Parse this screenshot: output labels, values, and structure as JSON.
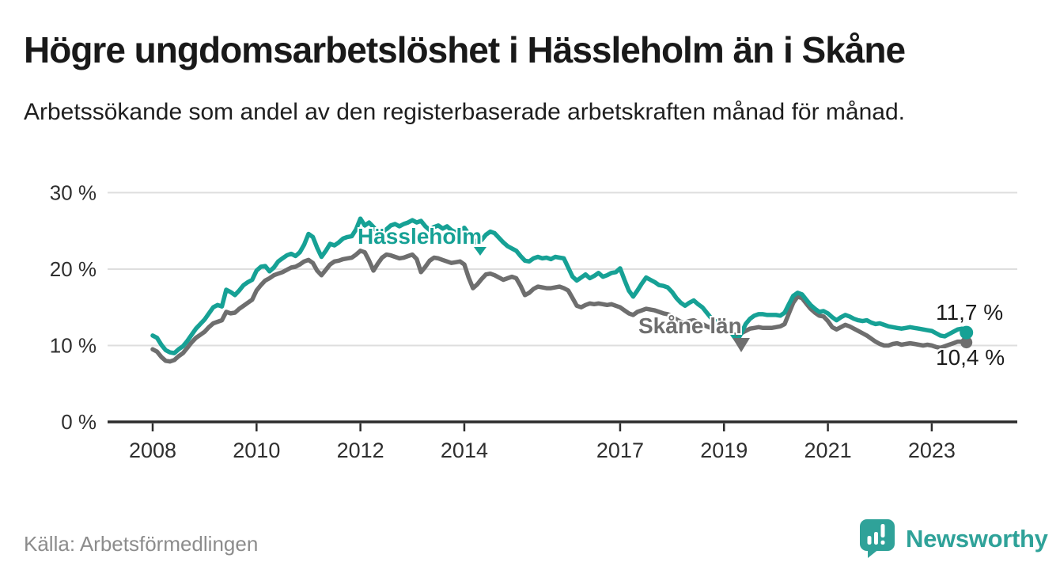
{
  "header": {
    "title": "Högre ungdomsarbetslöshet i Hässleholm än i Skåne",
    "subtitle": "Arbetssökande som andel av den registerbaserade arbetskraften månad för månad."
  },
  "footer": {
    "source": "Källa: Arbetsförmedlingen",
    "brand": "Newsworthy"
  },
  "colors": {
    "teal": "#16a195",
    "gray": "#6e6e6e",
    "grid": "#dedede",
    "axis": "#2c2c2c",
    "label_dark": "#1b1b1b",
    "muted": "#8c8c8c",
    "brand_teal": "#2fa299"
  },
  "chart_data": {
    "type": "line",
    "unit": "%",
    "frequency": "monthly",
    "x_start": "2008-01",
    "x_end": "2023-09",
    "ylim": [
      0,
      30
    ],
    "grid": true,
    "yticks": [
      {
        "value": 0,
        "label": "0 %"
      },
      {
        "value": 10,
        "label": "10 %"
      },
      {
        "value": 20,
        "label": "20 %"
      },
      {
        "value": 30,
        "label": "30 %"
      }
    ],
    "xticks": [
      "2008",
      "2010",
      "2012",
      "2014",
      "2017",
      "2019",
      "2021",
      "2023"
    ],
    "series": [
      {
        "name": "Skåne län",
        "color": "#6e6e6e",
        "end_value": 10.4,
        "end_label": "10,4 %",
        "values": [
          9.5,
          9.2,
          8.5,
          8.0,
          7.9,
          8.1,
          8.6,
          9.0,
          9.7,
          10.4,
          11.0,
          11.4,
          11.8,
          12.4,
          12.9,
          13.1,
          13.3,
          14.4,
          14.2,
          14.3,
          14.8,
          15.2,
          15.6,
          16.0,
          17.2,
          17.9,
          18.5,
          18.8,
          19.2,
          19.4,
          19.6,
          19.9,
          20.2,
          20.3,
          20.6,
          21.0,
          21.2,
          20.8,
          19.8,
          19.2,
          19.9,
          20.6,
          21.0,
          21.1,
          21.3,
          21.4,
          21.5,
          21.9,
          22.4,
          22.2,
          21.1,
          19.8,
          20.7,
          21.5,
          21.9,
          21.8,
          21.6,
          21.4,
          21.5,
          21.7,
          21.9,
          21.3,
          19.6,
          20.3,
          21.1,
          21.5,
          21.4,
          21.2,
          21.0,
          20.8,
          20.9,
          21.0,
          20.6,
          18.9,
          17.5,
          18.0,
          18.7,
          19.3,
          19.4,
          19.2,
          18.9,
          18.6,
          18.8,
          19.0,
          18.8,
          17.8,
          16.6,
          16.9,
          17.4,
          17.7,
          17.6,
          17.5,
          17.5,
          17.6,
          17.7,
          17.5,
          17.2,
          16.2,
          15.2,
          15.0,
          15.3,
          15.5,
          15.4,
          15.5,
          15.4,
          15.3,
          15.4,
          15.2,
          15.0,
          14.6,
          14.2,
          14.0,
          14.4,
          14.6,
          14.8,
          14.7,
          14.6,
          14.4,
          14.2,
          14.1,
          13.8,
          13.4,
          13.1,
          13.0,
          13.2,
          13.3,
          13.0,
          12.8,
          12.5,
          12.3,
          12.1,
          12.1,
          12.3,
          11.9,
          11.5,
          11.3,
          11.6,
          11.9,
          12.2,
          12.3,
          12.4,
          12.3,
          12.3,
          12.3,
          12.4,
          12.5,
          12.8,
          14.2,
          15.6,
          16.4,
          16.2,
          15.5,
          14.8,
          14.3,
          13.9,
          13.8,
          13.2,
          12.4,
          12.1,
          12.4,
          12.7,
          12.5,
          12.2,
          11.9,
          11.6,
          11.3,
          10.9,
          10.5,
          10.2,
          10.0,
          10.0,
          10.2,
          10.3,
          10.1,
          10.2,
          10.3,
          10.2,
          10.1,
          10.0,
          10.1,
          10.0,
          9.8,
          9.7,
          9.9,
          10.1,
          10.3,
          10.5,
          10.5,
          10.4
        ]
      },
      {
        "name": "Hässleholm",
        "color": "#16a195",
        "end_value": 11.7,
        "end_label": "11,7 %",
        "values": [
          11.3,
          11.0,
          10.1,
          9.4,
          9.1,
          9.0,
          9.5,
          9.9,
          10.6,
          11.4,
          12.2,
          12.8,
          13.4,
          14.2,
          15.0,
          15.3,
          15.1,
          17.3,
          17.0,
          16.6,
          17.2,
          17.9,
          18.3,
          18.6,
          19.8,
          20.3,
          20.4,
          19.7,
          20.2,
          21.0,
          21.4,
          21.8,
          22.0,
          21.7,
          22.2,
          23.2,
          24.6,
          24.2,
          22.8,
          21.6,
          22.4,
          23.3,
          23.1,
          23.5,
          24.0,
          24.2,
          24.3,
          25.2,
          26.6,
          25.7,
          26.1,
          25.5,
          24.8,
          24.4,
          25.2,
          25.7,
          25.9,
          25.6,
          25.9,
          26.1,
          26.4,
          26.1,
          26.3,
          25.6,
          25.1,
          25.5,
          25.7,
          25.3,
          25.6,
          25.1,
          24.8,
          25.0,
          25.4,
          24.6,
          23.9,
          23.4,
          23.8,
          24.5,
          24.9,
          24.7,
          24.1,
          23.5,
          23.0,
          22.7,
          22.4,
          21.7,
          21.1,
          21.0,
          21.4,
          21.6,
          21.4,
          21.5,
          21.3,
          21.6,
          21.5,
          21.4,
          20.2,
          19.0,
          18.5,
          18.9,
          19.3,
          18.8,
          19.1,
          19.5,
          19.0,
          19.2,
          19.5,
          19.6,
          20.1,
          18.6,
          17.2,
          16.4,
          17.2,
          18.1,
          18.9,
          18.6,
          18.3,
          17.9,
          17.8,
          17.6,
          17.0,
          16.2,
          15.6,
          15.2,
          15.6,
          15.9,
          15.4,
          15.0,
          14.3,
          13.6,
          13.2,
          13.0,
          13.2,
          12.5,
          11.4,
          10.6,
          11.6,
          12.8,
          13.5,
          13.9,
          14.1,
          14.1,
          14.0,
          14.0,
          14.0,
          13.9,
          14.3,
          15.4,
          16.5,
          16.9,
          16.7,
          16.0,
          15.3,
          14.8,
          14.4,
          14.5,
          14.2,
          13.7,
          13.3,
          13.7,
          14.0,
          13.8,
          13.5,
          13.3,
          13.2,
          13.3,
          13.0,
          12.8,
          12.9,
          12.7,
          12.5,
          12.4,
          12.3,
          12.2,
          12.3,
          12.4,
          12.3,
          12.2,
          12.1,
          12.0,
          11.9,
          11.6,
          11.3,
          11.2,
          11.5,
          11.8,
          12.1,
          12.2,
          11.7
        ]
      }
    ]
  }
}
